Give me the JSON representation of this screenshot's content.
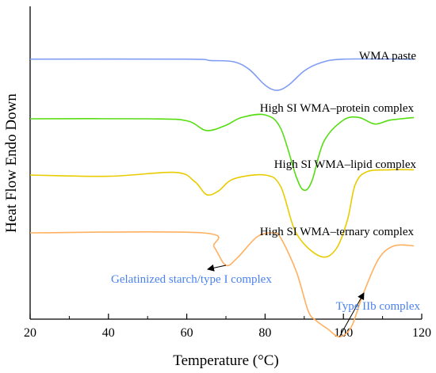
{
  "chart_data": {
    "type": "line",
    "xlabel": "Temperature (°C)",
    "ylabel": "Heat Flow Endo Down",
    "xlim": [
      20,
      120
    ],
    "xticks": [
      20,
      40,
      60,
      80,
      100,
      120
    ],
    "grid": false,
    "series": [
      {
        "name": "WMA paste",
        "color": "#7f9cf5",
        "points": [
          [
            20,
            0.04
          ],
          [
            60,
            0.04
          ],
          [
            66,
            0.02
          ],
          [
            72,
            0.0
          ],
          [
            76,
            -0.12
          ],
          [
            80,
            -0.36
          ],
          [
            83,
            -0.44
          ],
          [
            86,
            -0.36
          ],
          [
            90,
            -0.14
          ],
          [
            94,
            -0.02
          ],
          [
            100,
            0.04
          ],
          [
            118,
            0.04
          ]
        ]
      },
      {
        "name": "High SI WMA–protein complex",
        "color": "#55dd11",
        "points": [
          [
            20,
            0.0
          ],
          [
            50,
            0.0
          ],
          [
            60,
            -0.03
          ],
          [
            65,
            -0.18
          ],
          [
            70,
            -0.1
          ],
          [
            74,
            0.02
          ],
          [
            80,
            0.06
          ],
          [
            84,
            -0.15
          ],
          [
            88,
            -0.9
          ],
          [
            90,
            -1.1
          ],
          [
            92,
            -0.95
          ],
          [
            95,
            -0.35
          ],
          [
            100,
            -0.02
          ],
          [
            104,
            0.02
          ],
          [
            108,
            -0.08
          ],
          [
            112,
            -0.02
          ],
          [
            118,
            0.02
          ]
        ]
      },
      {
        "name": "High SI WMA–lipid complex",
        "color": "#e8cc00",
        "points": [
          [
            20,
            0.0
          ],
          [
            40,
            -0.02
          ],
          [
            57,
            0.04
          ],
          [
            62,
            -0.1
          ],
          [
            65,
            -0.3
          ],
          [
            68,
            -0.25
          ],
          [
            72,
            -0.06
          ],
          [
            80,
            0.0
          ],
          [
            84,
            -0.18
          ],
          [
            88,
            -0.9
          ],
          [
            94,
            -1.25
          ],
          [
            98,
            -1.15
          ],
          [
            101,
            -0.7
          ],
          [
            103,
            -0.15
          ],
          [
            106,
            0.05
          ],
          [
            112,
            0.08
          ],
          [
            118,
            0.08
          ]
        ]
      },
      {
        "name": "High SI WMA–ternary complex",
        "color": "#ffb060",
        "points": [
          [
            20,
            0.0
          ],
          [
            64,
            0.0
          ],
          [
            67,
            -0.22
          ],
          [
            70,
            -0.5
          ],
          [
            73,
            -0.38
          ],
          [
            78,
            -0.06
          ],
          [
            82,
            0.0
          ],
          [
            84,
            -0.08
          ],
          [
            88,
            -0.6
          ],
          [
            91,
            -1.2
          ],
          [
            93,
            -1.35
          ],
          [
            96,
            -1.48
          ],
          [
            99,
            -1.6
          ],
          [
            102,
            -1.45
          ],
          [
            105,
            -0.95
          ],
          [
            109,
            -0.4
          ],
          [
            113,
            -0.2
          ],
          [
            118,
            -0.2
          ]
        ]
      }
    ],
    "annotations": [
      {
        "text": "Gelatinized starch/type I complex",
        "color": "#4a82f0"
      },
      {
        "text": "Type IIb complex",
        "color": "#4a82f0"
      }
    ]
  }
}
